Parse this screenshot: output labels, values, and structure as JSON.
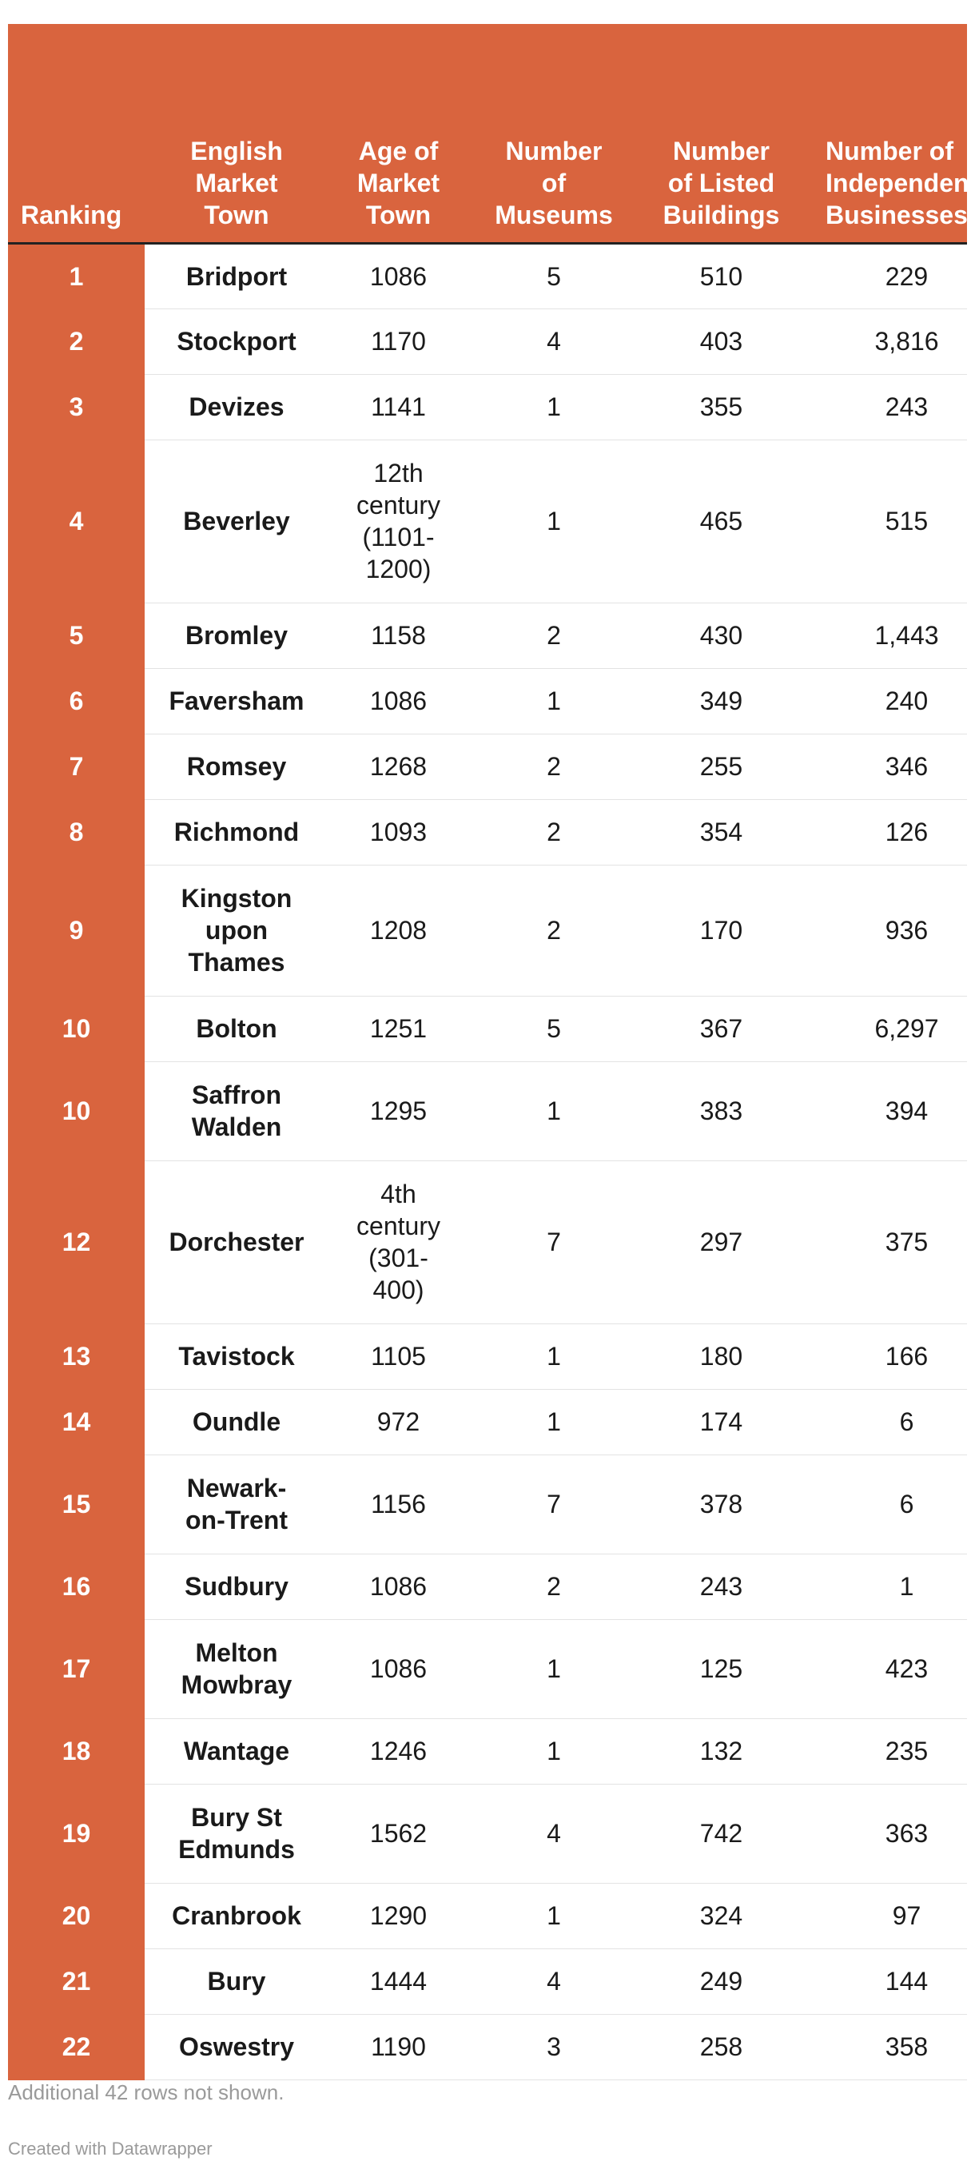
{
  "chart_data": {
    "type": "table",
    "columns": [
      "Ranking",
      "English Market Town",
      "Age of Market Town",
      "Number of Museums",
      "Number of Listed Buildings",
      "Number of Independent Businesses"
    ],
    "header_display": [
      "Ranking",
      "English\nMarket\nTown",
      "Age of\nMarket\nTown",
      "Number\nof\nMuseums",
      "Number\nof Listed\nBuildings",
      "Number of\nIndependent\nBusinesses"
    ],
    "rows": [
      [
        "1",
        "Bridport",
        "1086",
        "5",
        "510",
        "229"
      ],
      [
        "2",
        "Stockport",
        "1170",
        "4",
        "403",
        "3,816"
      ],
      [
        "3",
        "Devizes",
        "1141",
        "1",
        "355",
        "243"
      ],
      [
        "4",
        "Beverley",
        "12th\ncentury\n(1101-\n1200)",
        "1",
        "465",
        "515"
      ],
      [
        "5",
        "Bromley",
        "1158",
        "2",
        "430",
        "1,443"
      ],
      [
        "6",
        "Faversham",
        "1086",
        "1",
        "349",
        "240"
      ],
      [
        "7",
        "Romsey",
        "1268",
        "2",
        "255",
        "346"
      ],
      [
        "8",
        "Richmond",
        "1093",
        "2",
        "354",
        "126"
      ],
      [
        "9",
        "Kingston\nupon\nThames",
        "1208",
        "2",
        "170",
        "936"
      ],
      [
        "10",
        "Bolton",
        "1251",
        "5",
        "367",
        "6,297"
      ],
      [
        "10",
        "Saffron\nWalden",
        "1295",
        "1",
        "383",
        "394"
      ],
      [
        "12",
        "Dorchester",
        "4th\ncentury\n(301-\n400)",
        "7",
        "297",
        "375"
      ],
      [
        "13",
        "Tavistock",
        "1105",
        "1",
        "180",
        "166"
      ],
      [
        "14",
        "Oundle",
        "972",
        "1",
        "174",
        "6"
      ],
      [
        "15",
        "Newark-\non-Trent",
        "1156",
        "7",
        "378",
        "6"
      ],
      [
        "16",
        "Sudbury",
        "1086",
        "2",
        "243",
        "1"
      ],
      [
        "17",
        "Melton\nMowbray",
        "1086",
        "1",
        "125",
        "423"
      ],
      [
        "18",
        "Wantage",
        "1246",
        "1",
        "132",
        "235"
      ],
      [
        "19",
        "Bury St\nEdmunds",
        "1562",
        "4",
        "742",
        "363"
      ],
      [
        "20",
        "Cranbrook",
        "1290",
        "1",
        "324",
        "97"
      ],
      [
        "21",
        "Bury",
        "1444",
        "4",
        "249",
        "144"
      ],
      [
        "22",
        "Oswestry",
        "1190",
        "3",
        "258",
        "358"
      ]
    ]
  },
  "notes": "Additional 42 rows not shown.",
  "credit": "Created with Datawrapper",
  "colors": {
    "accent": "#d9643e",
    "text": "#1a1a1a",
    "muted": "#9a9a9a"
  }
}
